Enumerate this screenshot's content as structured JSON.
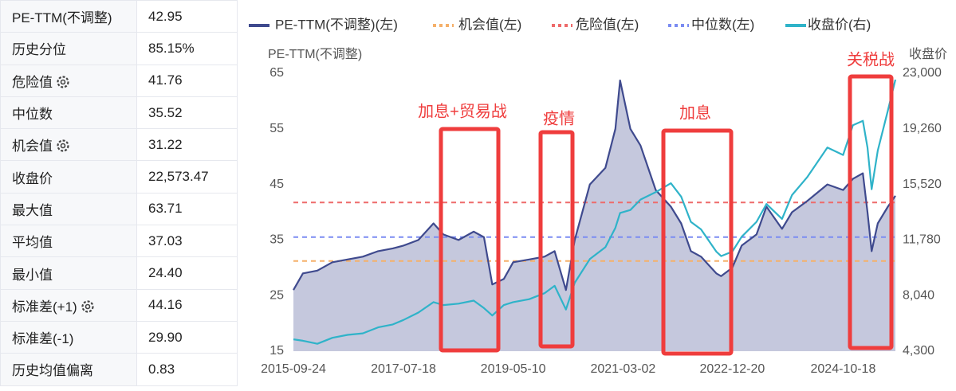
{
  "table": {
    "rows": [
      [
        "PE-TTM(不调整)",
        "42.95"
      ],
      [
        "历史分位",
        "85.15%"
      ],
      [
        "危险值",
        "41.76"
      ],
      [
        "中位数",
        "35.52"
      ],
      [
        "机会值",
        "31.22"
      ],
      [
        "收盘价",
        "22,573.47"
      ],
      [
        "最大值",
        "63.71"
      ],
      [
        "平均值",
        "37.03"
      ],
      [
        "最小值",
        "24.40"
      ],
      [
        "标准差(+1)",
        "44.16"
      ],
      [
        "标准差(-1)",
        "29.90"
      ],
      [
        "历史均值偏离",
        "0.83"
      ]
    ]
  },
  "chart_data": {
    "type": "line",
    "y_label": "PE-TTM(不调整)",
    "y2_label": "收盘价",
    "x": [
      "2015-09-24",
      "2015-11-20",
      "2016-02-15",
      "2016-05-16",
      "2016-08-15",
      "2016-11-15",
      "2017-02-15",
      "2017-05-15",
      "2017-07-18",
      "2017-10-16",
      "2018-01-15",
      "2018-03-15",
      "2018-06-15",
      "2018-09-14",
      "2018-11-15",
      "2019-01-04",
      "2019-03-15",
      "2019-05-10",
      "2019-08-15",
      "2019-11-15",
      "2020-01-15",
      "2020-03-23",
      "2020-05-15",
      "2020-08-14",
      "2020-11-16",
      "2021-01-15",
      "2021-02-12",
      "2021-04-15",
      "2021-06-15",
      "2021-09-15",
      "2021-12-15",
      "2022-02-15",
      "2022-04-15",
      "2022-06-15",
      "2022-09-15",
      "2022-10-14",
      "2022-12-20",
      "2023-02-15",
      "2023-05-15",
      "2023-07-14",
      "2023-10-16",
      "2023-12-15",
      "2024-03-15",
      "2024-07-15",
      "2024-10-18",
      "2024-12-16",
      "2025-02-14",
      "2025-03-14",
      "2025-04-08",
      "2025-05-15",
      "2025-07-15",
      "2025-08-29"
    ],
    "xlim": [
      "2015-09-24",
      "2025-08-29"
    ],
    "xticks": [
      "2015-09-24",
      "2017-07-18",
      "2019-05-10",
      "2021-03-02",
      "2022-12-20",
      "2024-10-18"
    ],
    "ylim": [
      15,
      65
    ],
    "yticks": [
      15,
      25,
      35,
      45,
      55,
      65
    ],
    "y2lim": [
      4300,
      23000
    ],
    "y2ticks": [
      {
        "value": 4300,
        "label": "4,300"
      },
      {
        "value": 8040,
        "label": "8,040"
      },
      {
        "value": 11780,
        "label": "11,780"
      },
      {
        "value": 15520,
        "label": "15,520"
      },
      {
        "value": 19260,
        "label": "19,260"
      },
      {
        "value": 23000,
        "label": "23,000"
      }
    ],
    "grid": false,
    "series": [
      {
        "name": "PE-TTM(不调整)(左)",
        "color": "#3f4a8e",
        "area": true,
        "values": [
          26,
          29,
          29.5,
          31,
          31.5,
          32,
          33,
          33.5,
          34,
          35,
          38,
          36,
          35,
          36.5,
          35.5,
          27,
          28,
          31,
          31.5,
          32,
          33,
          26,
          35,
          45,
          48,
          55,
          63.71,
          55,
          52,
          44,
          41,
          38,
          33,
          32,
          29,
          28.5,
          30,
          34,
          36,
          41,
          37,
          40,
          42,
          45,
          44,
          46,
          47,
          40,
          33,
          38,
          41,
          42.95
        ]
      },
      {
        "name": "收盘价(右)",
        "color": "#2fb3c9",
        "axis": "y2",
        "values": [
          5100,
          5000,
          4800,
          5200,
          5400,
          5500,
          5900,
          6100,
          6400,
          6900,
          7600,
          7400,
          7500,
          7700,
          7200,
          6700,
          7400,
          7600,
          7800,
          8200,
          8700,
          7100,
          8900,
          10500,
          11300,
          12600,
          13600,
          13800,
          14500,
          15000,
          15600,
          14700,
          13000,
          12500,
          11000,
          10700,
          11000,
          12000,
          13000,
          14200,
          13200,
          14800,
          16000,
          18000,
          17500,
          19500,
          19800,
          18000,
          15200,
          17800,
          20500,
          22573.47
        ]
      }
    ],
    "reference_lines": [
      {
        "name": "机会值(左)",
        "color": "#f5b06a",
        "value": 31.22
      },
      {
        "name": "危险值(左)",
        "color": "#ee6b6b",
        "value": 41.76
      },
      {
        "name": "中位数(左)",
        "color": "#7b8cf2",
        "value": 35.52
      }
    ],
    "annotations": [
      {
        "text": "加息+贸易战"
      },
      {
        "text": "疫情"
      },
      {
        "text": "加息"
      },
      {
        "text": "关税战"
      }
    ]
  }
}
